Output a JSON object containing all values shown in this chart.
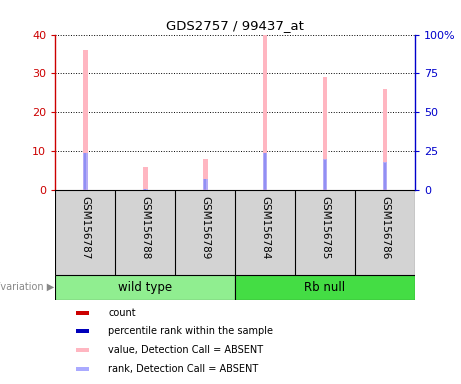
{
  "title": "GDS2757 / 99437_at",
  "samples": [
    "GSM156787",
    "GSM156788",
    "GSM156789",
    "GSM156784",
    "GSM156785",
    "GSM156786"
  ],
  "groups": [
    {
      "label": "wild type",
      "indices": [
        0,
        1,
        2
      ],
      "color": "#90EE90"
    },
    {
      "label": "Rb null",
      "indices": [
        3,
        4,
        5
      ],
      "color": "#44DD44"
    }
  ],
  "pink_bars": [
    36,
    6,
    8,
    40,
    29,
    26
  ],
  "red_bars": [
    0.4,
    0.0,
    0.2,
    0.4,
    0.4,
    0.4
  ],
  "blue_bars_left": [
    9.5,
    0.4,
    2.8,
    9.5,
    7.8,
    7.0
  ],
  "lavender_bars_right": [
    24,
    1,
    7,
    24,
    20,
    18
  ],
  "ylim_left": [
    0,
    40
  ],
  "ylim_right": [
    0,
    100
  ],
  "yticks_left": [
    0,
    10,
    20,
    30,
    40
  ],
  "ytick_labels_left": [
    "0",
    "10",
    "20",
    "30",
    "40"
  ],
  "yticks_right": [
    0,
    25,
    50,
    75,
    100
  ],
  "ytick_labels_right": [
    "0",
    "25",
    "50",
    "75",
    "100%"
  ],
  "left_axis_color": "#CC0000",
  "right_axis_color": "#0000CC",
  "pink_color": "#FFB6C1",
  "lavender_color": "#AAAAFF",
  "red_color": "#CC0000",
  "blue_color": "#0000BB",
  "bg_color": "#FFFFFF",
  "plot_bg": "#FFFFFF",
  "label_area_color": "#D3D3D3",
  "legend_items": [
    {
      "color": "#CC0000",
      "label": "count"
    },
    {
      "color": "#0000BB",
      "label": "percentile rank within the sample"
    },
    {
      "color": "#FFB6C1",
      "label": "value, Detection Call = ABSENT"
    },
    {
      "color": "#AAAAFF",
      "label": "rank, Detection Call = ABSENT"
    }
  ]
}
